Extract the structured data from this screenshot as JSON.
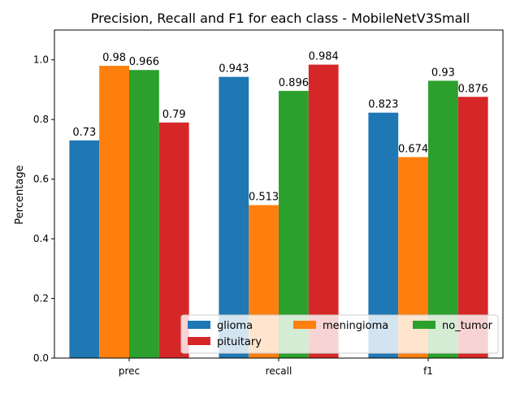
{
  "chart_data": {
    "type": "bar",
    "title": "Precision, Recall and F1 for each class - MobileNetV3Small",
    "xlabel": "",
    "ylabel": "Percentage",
    "categories": [
      "prec",
      "recall",
      "f1"
    ],
    "ylim": [
      0,
      1.1
    ],
    "yticks": [
      0.0,
      0.2,
      0.4,
      0.6,
      0.8,
      1.0
    ],
    "ytick_labels": [
      "0.0",
      "0.2",
      "0.4",
      "0.6",
      "0.8",
      "1.0"
    ],
    "grid": false,
    "legend": {
      "position": "lower-right",
      "columns": 3
    },
    "series": [
      {
        "name": "glioma",
        "color": "#1f77b4",
        "values": [
          0.73,
          0.943,
          0.823
        ],
        "labels": [
          "0.73",
          "0.943",
          "0.823"
        ]
      },
      {
        "name": "meningioma",
        "color": "#ff7f0e",
        "values": [
          0.98,
          0.513,
          0.674
        ],
        "labels": [
          "0.98",
          "0.513",
          "0.674"
        ]
      },
      {
        "name": "no_tumor",
        "color": "#2ca02c",
        "values": [
          0.966,
          0.896,
          0.93
        ],
        "labels": [
          "0.966",
          "0.896",
          "0.93"
        ]
      },
      {
        "name": "pituitary",
        "color": "#d62728",
        "values": [
          0.79,
          0.984,
          0.876
        ],
        "labels": [
          "0.79",
          "0.984",
          "0.876"
        ]
      }
    ]
  }
}
